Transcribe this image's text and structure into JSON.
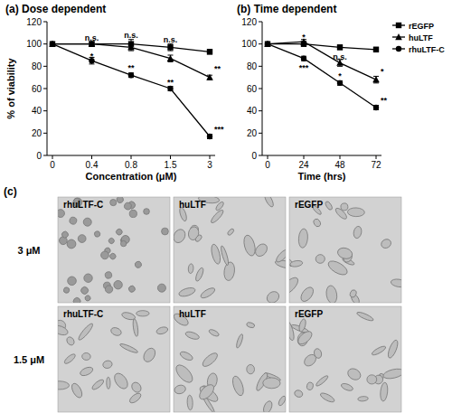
{
  "chart_data": [
    {
      "type": "line",
      "title": "(a) Dose dependent",
      "ylabel": "% of viability",
      "xlabel": "Concentration (μM)",
      "categories": [
        "0",
        "0.4",
        "0.8",
        "1.5",
        "3"
      ],
      "ylim": [
        0,
        120
      ],
      "yticks": [
        0,
        20,
        40,
        60,
        80,
        100,
        120
      ],
      "series": [
        {
          "name": "rEGFP",
          "color": "#000000",
          "marker": "square",
          "values": [
            100,
            100,
            100,
            97,
            93
          ],
          "errors": [
            0,
            2,
            4,
            3,
            2
          ]
        },
        {
          "name": "huLTF",
          "color": "#000000",
          "marker": "triangle",
          "values": [
            100,
            100,
            97,
            87,
            70
          ],
          "errors": [
            0,
            2,
            3,
            3,
            2
          ]
        },
        {
          "name": "rhuLTF-C",
          "color": "#000000",
          "marker": "circle",
          "values": [
            100,
            85,
            72,
            60,
            17
          ],
          "errors": [
            0,
            3,
            2,
            2,
            2
          ]
        }
      ],
      "annotations": [
        {
          "text": "n.s.",
          "category": "0.4",
          "y": 106
        },
        {
          "text": "*",
          "category": "0.4",
          "y": 90
        },
        {
          "text": "n.s.",
          "category": "0.8",
          "y": 108
        },
        {
          "text": "**",
          "category": "0.8",
          "y": 79
        },
        {
          "text": "n.s.",
          "category": "1.5",
          "y": 104
        },
        {
          "text": "**",
          "category": "1.5",
          "y": 66
        },
        {
          "text": "**",
          "category": "3",
          "y": 78
        },
        {
          "text": "***",
          "category": "3",
          "y": 24
        }
      ]
    },
    {
      "type": "line",
      "title": "(b) Time dependent",
      "xlabel": "Time (hrs)",
      "categories": [
        "0",
        "24",
        "48",
        "72"
      ],
      "ylim": [
        0,
        120
      ],
      "yticks": [
        0,
        20,
        40,
        60,
        80,
        100,
        120
      ],
      "legend": "top-right",
      "series": [
        {
          "name": "rEGFP",
          "color": "#000000",
          "marker": "square",
          "values": [
            100,
            100,
            97,
            95
          ],
          "errors": [
            0,
            2,
            2,
            2
          ]
        },
        {
          "name": "huLTF",
          "color": "#000000",
          "marker": "triangle",
          "values": [
            100,
            102,
            83,
            68
          ],
          "errors": [
            0,
            2,
            3,
            3
          ]
        },
        {
          "name": "rhuLTF-C",
          "color": "#000000",
          "marker": "circle",
          "values": [
            100,
            87,
            65,
            43
          ],
          "errors": [
            0,
            2,
            2,
            2
          ]
        }
      ],
      "annotations": [
        {
          "text": "*",
          "category": "24",
          "y": 107
        },
        {
          "text": "***",
          "category": "24",
          "y": 79
        },
        {
          "text": "n.s.",
          "category": "48",
          "y": 89
        },
        {
          "text": "*",
          "category": "48",
          "y": 72
        },
        {
          "text": "*",
          "category": "72",
          "y": 76
        },
        {
          "text": "**",
          "category": "72",
          "y": 50
        }
      ]
    }
  ],
  "panel_c": {
    "label": "(c)",
    "rows": [
      "3 μM",
      "1.5 μM"
    ],
    "columns": [
      "rhuLTF-C",
      "huLTF",
      "rEGFP"
    ]
  }
}
